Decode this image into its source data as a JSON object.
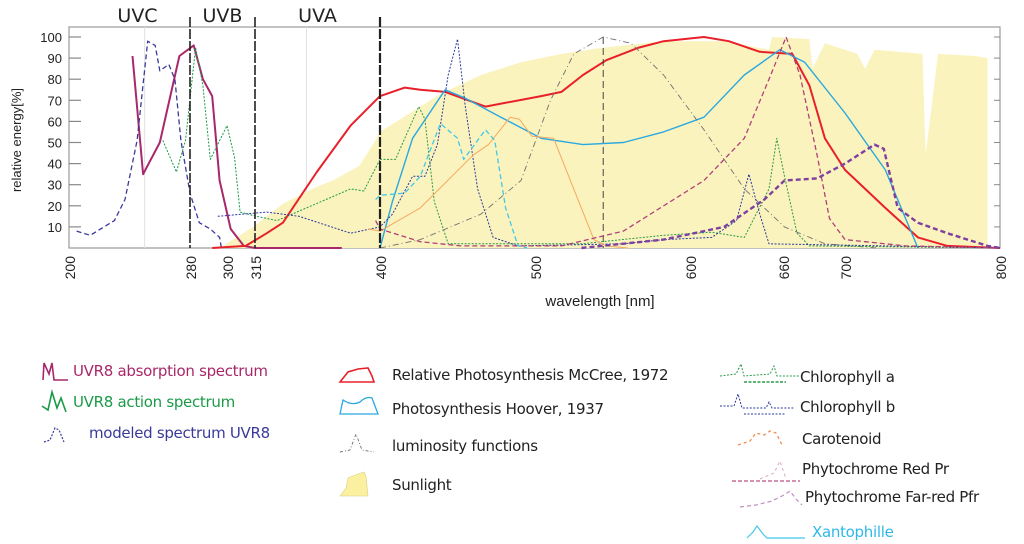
{
  "chart_data": {
    "type": "line",
    "title": "",
    "xlabel": "wavelength [nm]",
    "ylabel": "relative energy[%]",
    "xlim": [
      200,
      800
    ],
    "ylim": [
      0,
      100
    ],
    "x_ticks": [
      200,
      280,
      300,
      315,
      400,
      500,
      600,
      660,
      700,
      800
    ],
    "y_ticks": [
      10,
      20,
      30,
      40,
      50,
      60,
      70,
      80,
      90,
      100
    ],
    "bands": [
      {
        "label": "UVC",
        "from": 200,
        "to": 280
      },
      {
        "label": "UVB",
        "from": 280,
        "to": 315
      },
      {
        "label": "UVA",
        "from": 315,
        "to": 400
      }
    ],
    "band_boundaries": [
      280,
      315,
      400
    ],
    "legend_placement": "bottom",
    "series": [
      {
        "name": "Sunlight",
        "color": "#fbf3bd",
        "style": "area",
        "points": [
          [
            296,
            0
          ],
          [
            314,
            10
          ],
          [
            334,
            21
          ],
          [
            357,
            29
          ],
          [
            368,
            32
          ],
          [
            386,
            39
          ],
          [
            396,
            50
          ],
          [
            400,
            55
          ],
          [
            413,
            61
          ],
          [
            439,
            73
          ],
          [
            465,
            82
          ],
          [
            491,
            88
          ],
          [
            517,
            92
          ],
          [
            544,
            95
          ],
          [
            583,
            98
          ],
          [
            622,
            98
          ],
          [
            651,
            94
          ],
          [
            653,
            100
          ],
          [
            677,
            99
          ],
          [
            679,
            85
          ],
          [
            687,
            97
          ],
          [
            708,
            92
          ],
          [
            713,
            85
          ],
          [
            719,
            94
          ],
          [
            750,
            92
          ],
          [
            752,
            44
          ],
          [
            760,
            92
          ],
          [
            784,
            91
          ],
          [
            792,
            90
          ],
          [
            792,
            0
          ]
        ]
      },
      {
        "name": "UVR8 absorption spectrum",
        "color": "#a8286a",
        "style": "solid-thick",
        "points": [
          [
            242,
            91
          ],
          [
            249,
            35
          ],
          [
            260,
            50
          ],
          [
            273,
            91
          ],
          [
            282,
            96
          ],
          [
            287,
            80
          ],
          [
            292,
            72
          ],
          [
            296,
            32
          ],
          [
            302,
            9
          ],
          [
            309,
            1
          ],
          [
            315,
            0
          ],
          [
            374,
            0
          ]
        ]
      },
      {
        "name": "modeled spectrum UVR8",
        "color": "#3a3a9a",
        "style": "dashed",
        "points": [
          [
            205,
            8
          ],
          [
            214,
            6
          ],
          [
            230,
            13
          ],
          [
            237,
            23
          ],
          [
            245,
            51
          ],
          [
            252,
            98
          ],
          [
            257,
            96
          ],
          [
            260,
            84
          ],
          [
            266,
            87
          ],
          [
            270,
            80
          ],
          [
            274,
            51
          ],
          [
            280,
            26
          ],
          [
            285,
            12
          ],
          [
            291,
            9
          ],
          [
            296,
            5
          ],
          [
            297,
            0
          ]
        ]
      },
      {
        "name": "UVR8 action spectrum",
        "color": "#1a9a48",
        "style": "dotted",
        "points": [
          [
            262,
            51
          ],
          [
            271,
            36
          ],
          [
            277,
            51
          ],
          [
            283,
            95
          ],
          [
            287,
            77
          ],
          [
            291,
            42
          ],
          [
            300,
            58
          ],
          [
            304,
            43
          ],
          [
            307,
            17
          ],
          [
            316,
            15
          ],
          [
            330,
            13
          ],
          [
            380,
            28
          ],
          [
            389,
            27
          ],
          [
            400,
            42
          ]
        ]
      },
      {
        "name": "Relative Photosynthesis McCree, 1972",
        "color": "#e8202a",
        "style": "solid-thick",
        "points": [
          [
            292,
            0
          ],
          [
            310,
            1
          ],
          [
            323,
            7
          ],
          [
            334,
            12
          ],
          [
            357,
            36
          ],
          [
            380,
            58
          ],
          [
            400,
            72
          ],
          [
            416,
            76
          ],
          [
            426,
            75
          ],
          [
            442,
            74
          ],
          [
            468,
            67
          ],
          [
            504,
            72
          ],
          [
            517,
            74
          ],
          [
            531,
            82
          ],
          [
            546,
            89
          ],
          [
            567,
            95
          ],
          [
            583,
            98
          ],
          [
            609,
            100
          ],
          [
            625,
            98
          ],
          [
            645,
            93
          ],
          [
            666,
            92
          ],
          [
            677,
            77
          ],
          [
            687,
            52
          ],
          [
            700,
            37
          ],
          [
            726,
            19
          ],
          [
            747,
            5
          ],
          [
            766,
            1
          ],
          [
            800,
            0
          ]
        ]
      },
      {
        "name": "Photosynthesis Hoover, 1937",
        "color": "#2aa8e0",
        "style": "solid",
        "points": [
          [
            400,
            0
          ],
          [
            408,
            22
          ],
          [
            421,
            52
          ],
          [
            442,
            75
          ],
          [
            455,
            71
          ],
          [
            478,
            62
          ],
          [
            504,
            52
          ],
          [
            531,
            49
          ],
          [
            557,
            50
          ],
          [
            583,
            55
          ],
          [
            609,
            62
          ],
          [
            635,
            82
          ],
          [
            658,
            94
          ],
          [
            674,
            88
          ],
          [
            700,
            64
          ],
          [
            726,
            37
          ],
          [
            747,
            0
          ]
        ]
      },
      {
        "name": "luminosity functions",
        "color": "#707070",
        "style": "dashdot",
        "points": [
          [
            400,
            0
          ],
          [
            426,
            4
          ],
          [
            465,
            16
          ],
          [
            491,
            32
          ],
          [
            510,
            70
          ],
          [
            525,
            92
          ],
          [
            544,
            100
          ],
          [
            562,
            97
          ],
          [
            583,
            82
          ],
          [
            609,
            56
          ],
          [
            635,
            28
          ],
          [
            661,
            10
          ],
          [
            687,
            2
          ],
          [
            720,
            0
          ]
        ]
      },
      {
        "name": "Chlorophyll a",
        "color": "#2a9a4a",
        "style": "dotted",
        "points": [
          [
            400,
            42
          ],
          [
            410,
            42
          ],
          [
            425,
            67
          ],
          [
            429,
            61
          ],
          [
            435,
            22
          ],
          [
            444,
            2
          ],
          [
            530,
            2
          ],
          [
            583,
            6
          ],
          [
            614,
            7.5
          ],
          [
            635,
            5
          ],
          [
            651,
            28
          ],
          [
            656,
            52
          ],
          [
            661,
            34
          ],
          [
            669,
            7
          ],
          [
            677,
            1
          ],
          [
            800,
            0
          ]
        ]
      },
      {
        "name": "Chlorophyll b",
        "color": "#2a3a9a",
        "style": "dotted",
        "points": [
          [
            295,
            15
          ],
          [
            323,
            17
          ],
          [
            345,
            15
          ],
          [
            380,
            7
          ],
          [
            400,
            10
          ],
          [
            408,
            16
          ],
          [
            421,
            34
          ],
          [
            429,
            34
          ],
          [
            437,
            49
          ],
          [
            444,
            82
          ],
          [
            450,
            99
          ],
          [
            455,
            67
          ],
          [
            463,
            28
          ],
          [
            473,
            5
          ],
          [
            489,
            1
          ],
          [
            557,
            2
          ],
          [
            583,
            4
          ],
          [
            614,
            5
          ],
          [
            630,
            13
          ],
          [
            638,
            35
          ],
          [
            645,
            16
          ],
          [
            651,
            2
          ],
          [
            800,
            0
          ]
        ]
      },
      {
        "name": "Carotenoid",
        "color": "#f5a860",
        "style": "solid-thin",
        "points": [
          [
            392,
            9
          ],
          [
            400,
            8
          ],
          [
            426,
            19
          ],
          [
            460,
            44
          ],
          [
            470,
            49
          ],
          [
            484,
            62
          ],
          [
            490,
            61
          ],
          [
            498,
            53
          ],
          [
            512,
            52
          ],
          [
            538,
            4
          ],
          [
            546,
            1
          ],
          [
            560,
            0
          ]
        ]
      },
      {
        "name": "Phytochrome Red Pr",
        "color": "#b0407a",
        "style": "dashed",
        "points": [
          [
            397,
            13
          ],
          [
            400,
            9
          ],
          [
            426,
            3
          ],
          [
            452,
            1
          ],
          [
            517,
            1
          ],
          [
            557,
            8
          ],
          [
            609,
            32
          ],
          [
            635,
            52
          ],
          [
            651,
            80
          ],
          [
            662,
            100
          ],
          [
            671,
            82
          ],
          [
            682,
            44
          ],
          [
            690,
            14
          ],
          [
            700,
            4
          ],
          [
            739,
            1
          ],
          [
            800,
            0
          ]
        ]
      },
      {
        "name": "Phytochrome Far-red Pfr",
        "color": "#8040a0",
        "style": "dashed-thick",
        "points": [
          [
            530,
            0
          ],
          [
            583,
            4
          ],
          [
            622,
            10
          ],
          [
            648,
            23
          ],
          [
            661,
            32
          ],
          [
            682,
            33
          ],
          [
            700,
            40
          ],
          [
            719,
            49
          ],
          [
            725,
            47
          ],
          [
            734,
            19
          ],
          [
            747,
            12
          ],
          [
            766,
            7
          ],
          [
            792,
            1
          ],
          [
            800,
            0
          ]
        ]
      },
      {
        "name": "Xantophille",
        "color": "#40c8e8",
        "style": "dashed",
        "points": [
          [
            397,
            23
          ],
          [
            400,
            25
          ],
          [
            416,
            26
          ],
          [
            426,
            34
          ],
          [
            439,
            59
          ],
          [
            450,
            52
          ],
          [
            454,
            42
          ],
          [
            468,
            56
          ],
          [
            474,
            51
          ],
          [
            481,
            19
          ],
          [
            489,
            1
          ],
          [
            495,
            0
          ]
        ]
      }
    ]
  },
  "legend": {
    "uvr8_absorption": "UVR8 absorption spectrum",
    "uvr8_action": "UVR8 action spectrum",
    "uvr8_modeled": "modeled spectrum UVR8",
    "mccree": "Relative Photosynthesis McCree, 1972",
    "hoover": "Photosynthesis Hoover, 1937",
    "luminosity": "luminosity functions",
    "sunlight": "Sunlight",
    "chl_a": "Chlorophyll a",
    "chl_b": "Chlorophyll b",
    "carotenoid": "Carotenoid",
    "pr": "Phytochrome Red Pr",
    "pfr": "Phytochrome Far-red Pfr",
    "xanto": "Xantophille"
  }
}
